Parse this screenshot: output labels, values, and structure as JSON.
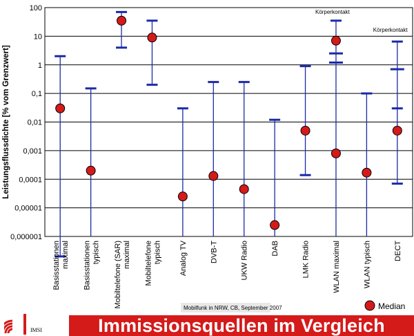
{
  "chart_data": {
    "type": "scatter",
    "ylabel": "Leistungsflussdichte [% vom Grenzwert]",
    "yscale": "log",
    "ylim": [
      1e-06,
      100
    ],
    "yticks": [
      "100",
      "10",
      "1",
      "0,1",
      "0,01",
      "0,001",
      "0,0001",
      "0,00001",
      "0,000001"
    ],
    "grid": true,
    "legend": {
      "position": "bottom-right",
      "label": "Median"
    },
    "categories": [
      {
        "label": [
          "Basisstationen",
          "maximal"
        ],
        "min": 2e-07,
        "max": 2,
        "median": 0.03
      },
      {
        "label": [
          "Basisstationen",
          "typisch"
        ],
        "min": null,
        "max": 0.15,
        "median": 0.0002
      },
      {
        "label": [
          "Mobiltelefone (SAR)",
          "maximal"
        ],
        "min": 4,
        "max": 70,
        "median": 35
      },
      {
        "label": [
          "Mobiltelefone",
          "typisch"
        ],
        "min": 0.2,
        "max": 35,
        "median": 9
      },
      {
        "label": [
          "Analog TV"
        ],
        "min": null,
        "max": 0.03,
        "median": 2.5e-05
      },
      {
        "label": [
          "DVB-T"
        ],
        "min": null,
        "max": 0.25,
        "median": 0.00013
      },
      {
        "label": [
          "UKW Radio"
        ],
        "min": null,
        "max": 0.25,
        "median": 4.5e-05
      },
      {
        "label": [
          "DAB"
        ],
        "min": null,
        "max": 0.012,
        "median": 2.5e-06
      },
      {
        "label": [
          "LMK Radio"
        ],
        "min": 0.00014,
        "max": 0.9,
        "median": 0.005
      },
      {
        "label": [
          "WLAN maximal"
        ],
        "min": null,
        "max": 35,
        "max2": 2.5,
        "median": 7,
        "median2": 0.0008
      },
      {
        "label": [
          "WLAN typisch"
        ],
        "min": null,
        "max": 0.1,
        "median": 0.00017
      },
      {
        "label": [
          "DECT"
        ],
        "min": 7e-05,
        "max": 6.5,
        "max2": 0.7,
        "q": 0.03,
        "median": 0.005
      }
    ],
    "annotations": [
      "Körperkontakt",
      "Körperkontakt"
    ],
    "note": "Mobilfunk in NRW, CB, September 2007"
  },
  "colors": {
    "line": "#1a2aa8",
    "marker": "#d51a1a",
    "banner": "#d51a1a"
  },
  "footer": {
    "banner_title": "Immissionsquellen im Vergleich",
    "logo_text": "IMSI"
  }
}
